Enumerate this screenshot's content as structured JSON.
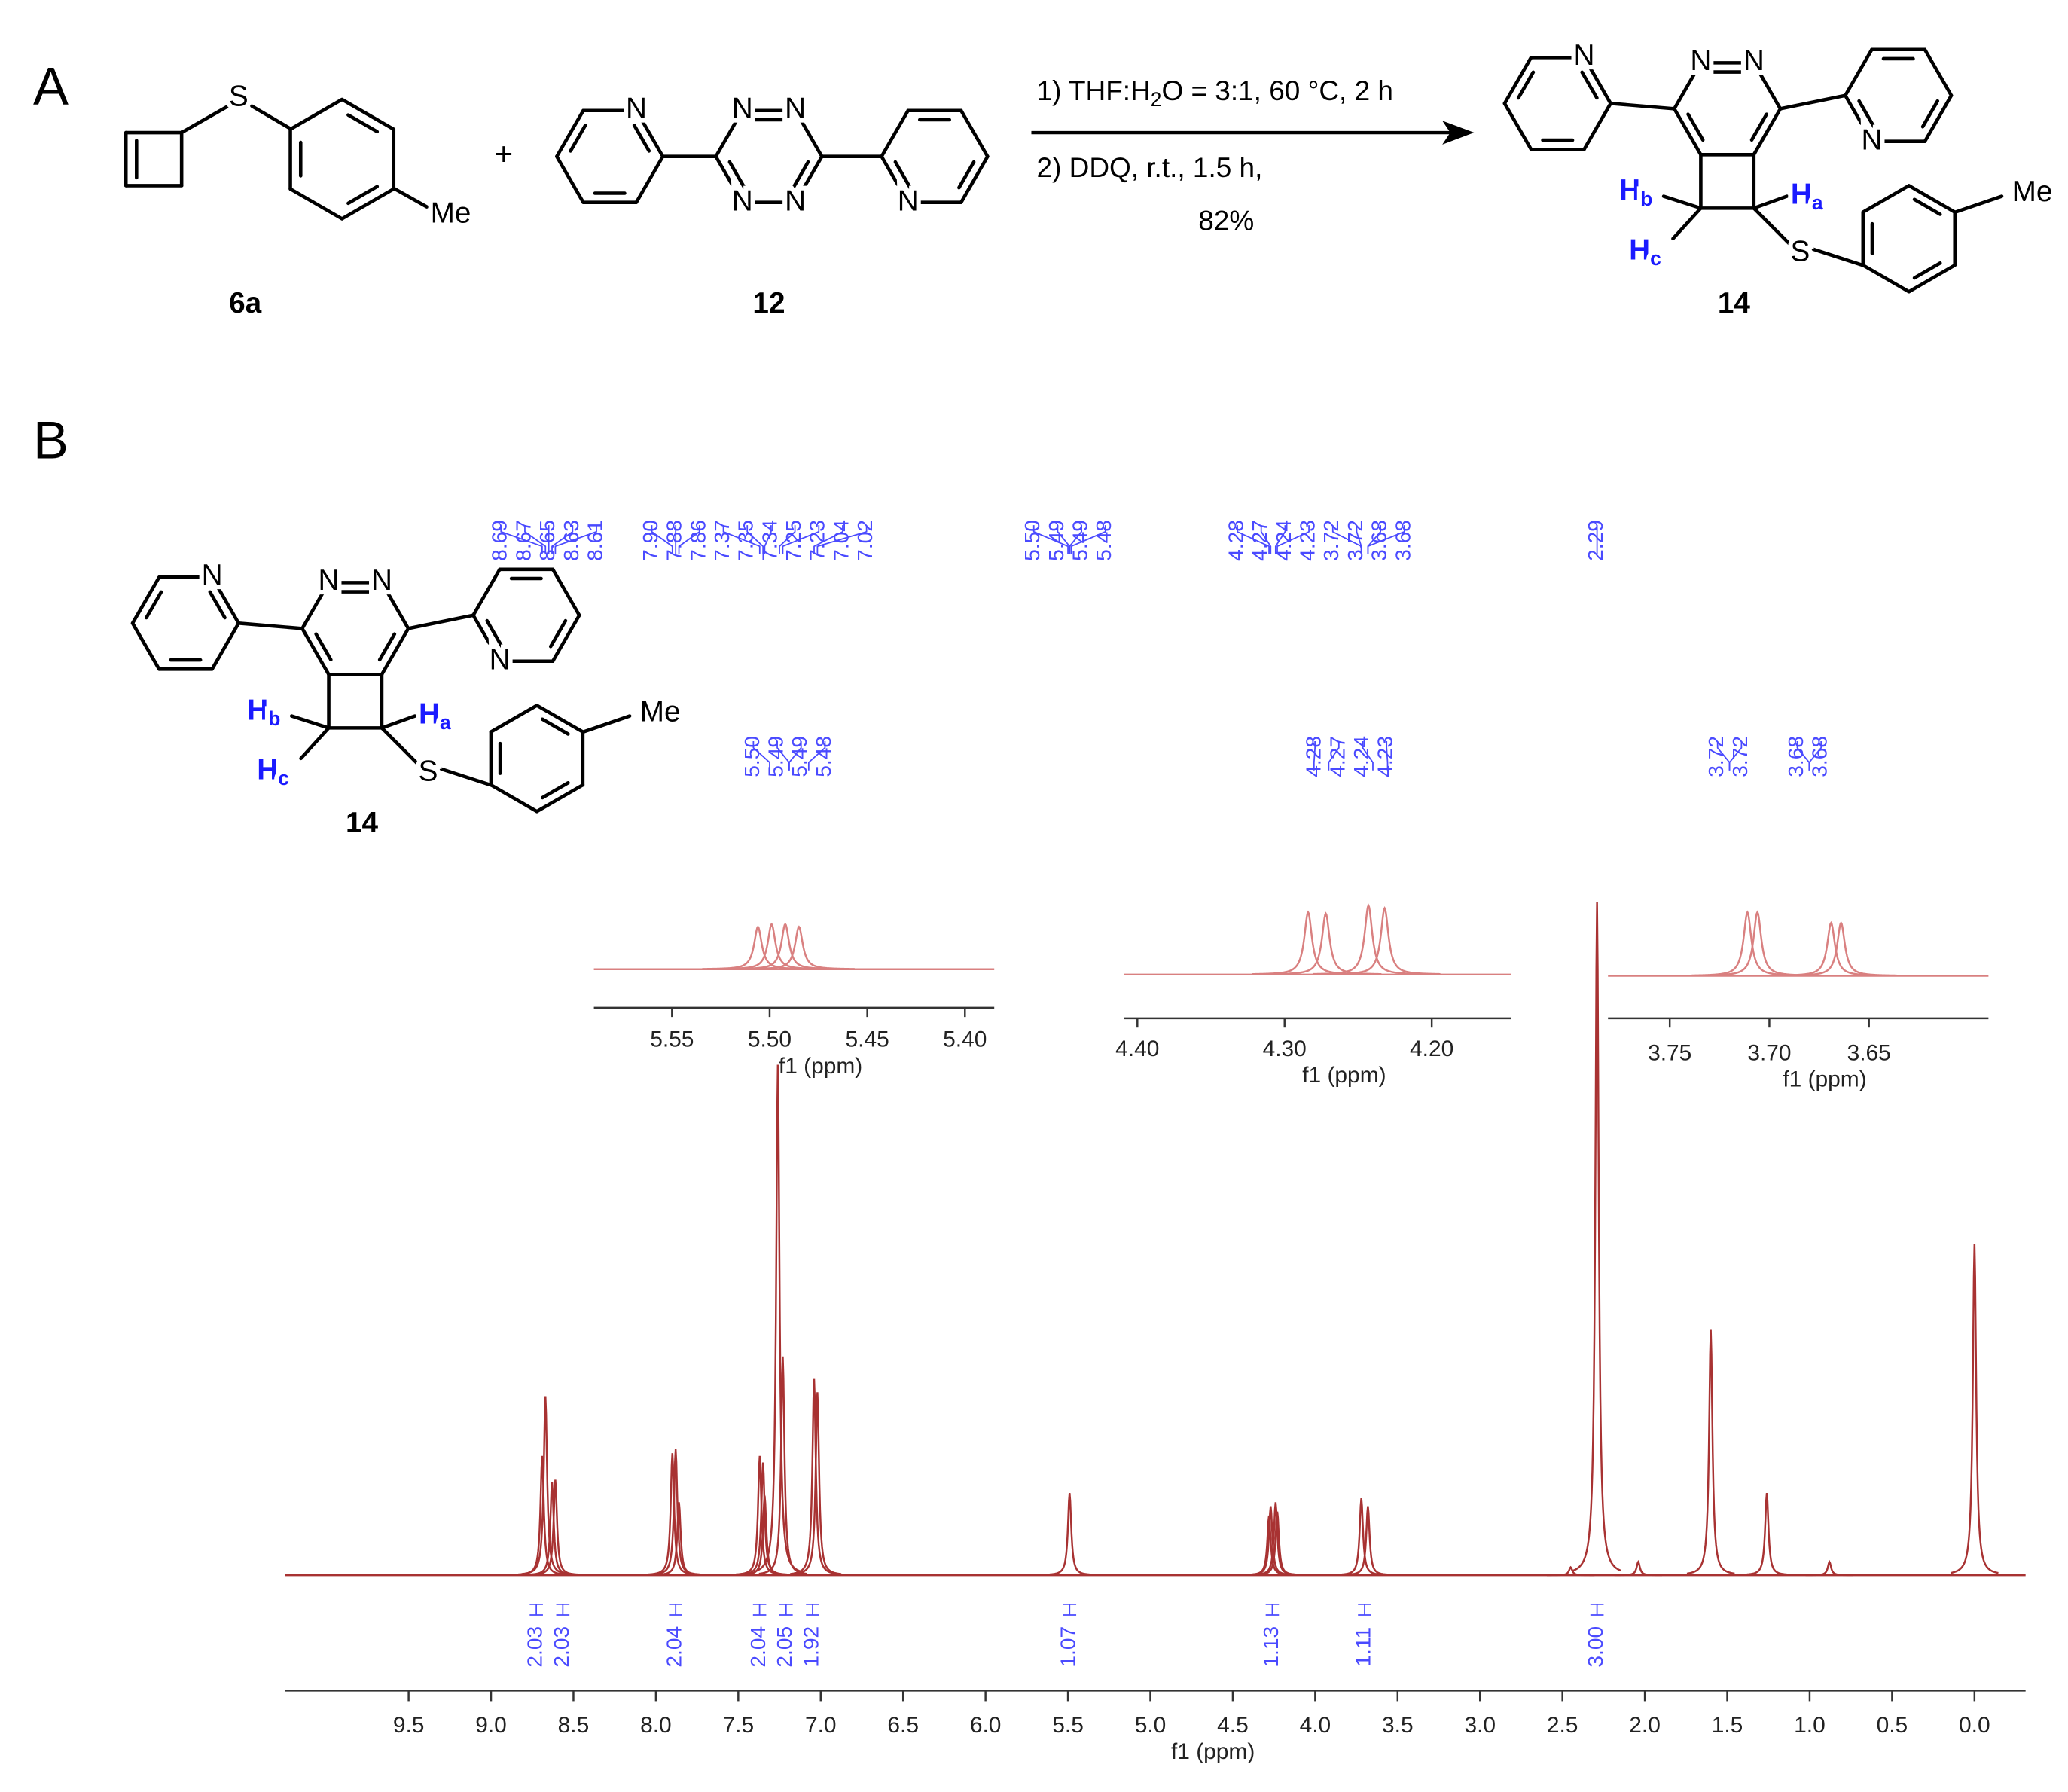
{
  "panel_a": {
    "label": "A",
    "compounds": [
      "6a",
      "12",
      "14"
    ],
    "plus": "+",
    "conditions": {
      "step1": [
        "1) THF:H",
        "2",
        "O = 3:1, 60 °C, 2 h"
      ],
      "step2": "2) DDQ, r.t., 1.5 h,",
      "yield": "82%"
    }
  },
  "atoms": {
    "N": "N",
    "S": "S",
    "Me": "Me",
    "H": "H",
    "subscripts": [
      "a",
      "b",
      "c"
    ]
  },
  "panel_b": {
    "label": "B",
    "compound_label": "14"
  },
  "spectrum": {
    "type": "nmr",
    "x_label": "f1 (ppm)",
    "xlim": [
      10.25,
      -0.31
    ],
    "ylim": [
      0,
      520
    ],
    "xticks": [
      9.5,
      {
        "value": 9,
        "label": "9.0"
      },
      8.5,
      {
        "value": 8,
        "label": "8.0"
      },
      7.5,
      {
        "value": 7,
        "label": "7.0"
      },
      6.5,
      {
        "value": 6,
        "label": "6.0"
      },
      5.5,
      {
        "value": 5,
        "label": "5.0"
      },
      4.5,
      {
        "value": 4,
        "label": "4.0"
      },
      3.5,
      {
        "value": 3,
        "label": "3.0"
      },
      2.5,
      {
        "value": 2,
        "label": "2.0"
      },
      1.5,
      {
        "value": 1,
        "label": "1.0"
      },
      0.5,
      {
        "value": 0,
        "label": "0.0"
      }
    ],
    "color": "#a83232",
    "pick_color": "#4a4aff",
    "peaks": {
      "ppm": [
        8.69,
        8.67,
        8.63,
        8.61,
        7.9,
        7.88,
        7.86,
        7.37,
        7.35,
        7.34,
        7.26,
        7.23,
        7.04,
        7.02,
        5.49,
        4.28,
        4.27,
        4.24,
        4.23,
        3.72,
        3.68,
        2.45,
        2.29,
        2.04,
        1.6,
        1.26,
        0.88,
        0
      ],
      "height": [
        90,
        135,
        70,
        72,
        92,
        95,
        55,
        90,
        85,
        60,
        385,
        165,
        148,
        138,
        62,
        45,
        52,
        55,
        48,
        58,
        52,
        6,
        508,
        10,
        185,
        62,
        10,
        250
      ]
    },
    "peak_picks": [
      8.69,
      8.67,
      8.65,
      8.63,
      8.61,
      {
        "value": 7.9,
        "label": "7.90"
      },
      7.88,
      7.86,
      7.37,
      7.35,
      7.34,
      7.25,
      7.23,
      7.04,
      7.02,
      {
        "value": 5.5,
        "label": "5.50"
      },
      5.49,
      5.49,
      5.48,
      4.28,
      4.27,
      4.24,
      4.23,
      3.72,
      3.72,
      3.68,
      3.68,
      2.29
    ],
    "integrals": {
      "values": [
        2.03,
        2.03,
        2.04,
        2.04,
        2.05,
        1.92,
        1.07,
        1.13,
        1.11,
        {
          "value": 3,
          "label": "3.00"
        }
      ],
      "ppm": [
        8.67,
        8.62,
        7.88,
        7.35,
        7.25,
        7.03,
        5.49,
        4.26,
        3.7,
        2.29
      ]
    },
    "insets": [
      {
        "xlim": [
          5.59,
          5.385
        ],
        "ylim": [
          0,
          70
        ],
        "color": "#d98080",
        "x_label": "f1 (ppm)",
        "xticks": [
          5.55,
          {
            "value": 5.5,
            "label": "5.50"
          },
          5.45,
          {
            "value": 5.4,
            "label": "5.40"
          }
        ],
        "peak_picks": [
          {
            "value": 5.5,
            "label": "5.50"
          },
          5.49,
          5.49,
          5.48
        ],
        "peaks": {
          "ppm": [
            5.506,
            5.499,
            5.492,
            5.485
          ],
          "height": [
            32,
            34,
            34,
            32
          ]
        }
      },
      {
        "xlim": [
          4.409,
          4.146
        ],
        "ylim": [
          0,
          70
        ],
        "color": "#d98080",
        "x_label": "f1 (ppm)",
        "xticks": [
          {
            "value": 4.4,
            "label": "4.40"
          },
          {
            "value": 4.3,
            "label": "4.30"
          },
          {
            "value": 4.2,
            "label": "4.20"
          }
        ],
        "peak_picks": [
          4.28,
          4.27,
          4.24,
          4.23
        ],
        "peaks": {
          "ppm": [
            4.284,
            4.272,
            4.243,
            4.232
          ],
          "height": [
            47,
            46,
            52,
            50
          ]
        }
      },
      {
        "xlim": [
          3.781,
          3.59
        ],
        "ylim": [
          0,
          70
        ],
        "color": "#d98080",
        "x_label": "f1 (ppm)",
        "xticks": [
          3.75,
          {
            "value": 3.7,
            "label": "3.70"
          },
          3.65
        ],
        "peak_picks": [
          3.72,
          3.72,
          3.68,
          3.68
        ],
        "peaks": {
          "ppm": [
            3.711,
            3.706,
            3.669,
            3.664
          ],
          "height": [
            48,
            48,
            40,
            40
          ]
        }
      }
    ]
  }
}
